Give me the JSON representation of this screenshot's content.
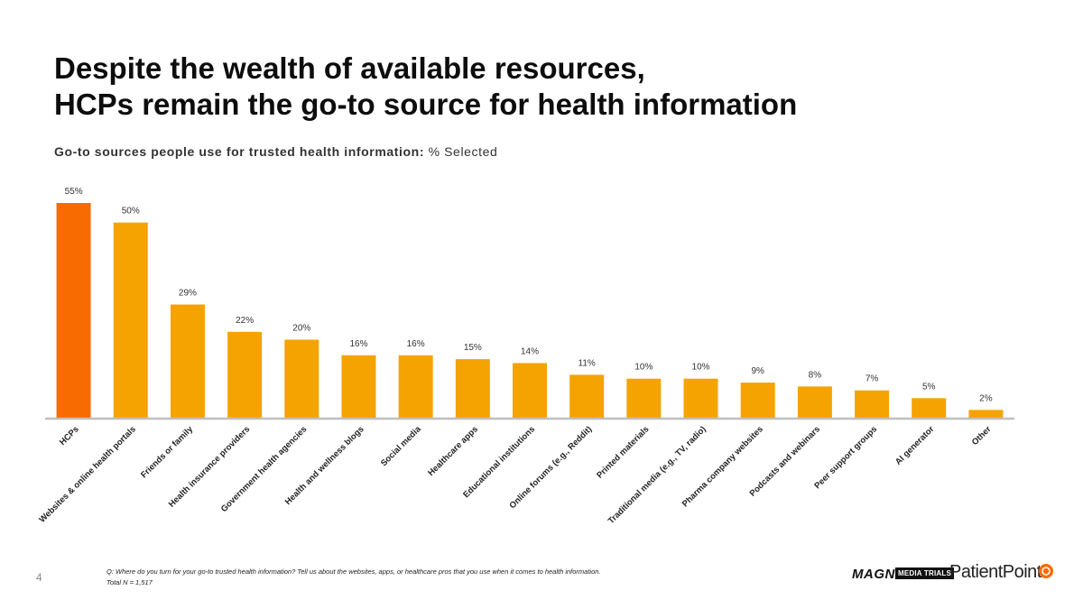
{
  "title_line1": "Despite the wealth of available resources,",
  "title_line2": "HCPs remain the go-to source for health information",
  "subtitle_bold": "Go-to sources people use for trusted health information:",
  "subtitle_rest": "% Selected",
  "page_number": "4",
  "footnote_line1": "Q: Where do you turn for your go-to trusted health information? Tell us about the websites, apps, or healthcare pros that you use when it comes to health information.",
  "footnote_line2": "Total N = 1,517",
  "logos": {
    "magna": "MAGNA",
    "media_trials": "MEDIA TRIALS",
    "patientpoint": "PatientPoint"
  },
  "colors": {
    "highlight": "#F76B00",
    "bar": "#F5A300",
    "axis": "#BFBFBF"
  },
  "chart_data": {
    "type": "bar",
    "title": "Go-to sources people use for trusted health information: % Selected",
    "xlabel": "",
    "ylabel": "",
    "ylim": [
      0,
      55
    ],
    "grid": false,
    "highlight_index": 0,
    "categories": [
      "HCPs",
      "Websites & online health portals",
      "Friends or family",
      "Health insurance providers",
      "Government health agencies",
      "Health and wellness blogs",
      "Social media",
      "Healthcare apps",
      "Educational institutions",
      "Online forums (e.g., Reddit)",
      "Printed materials",
      "Traditional media (e.g., TV, radio)",
      "Pharma company websites",
      "Podcasts and webinars",
      "Peer support groups",
      "AI generator",
      "Other"
    ],
    "values": [
      55,
      50,
      29,
      22,
      20,
      16,
      16,
      15,
      14,
      11,
      10,
      10,
      9,
      8,
      7,
      5,
      2
    ],
    "value_labels": [
      "55%",
      "50%",
      "29%",
      "22%",
      "20%",
      "16%",
      "16%",
      "15%",
      "14%",
      "11%",
      "10%",
      "10%",
      "9%",
      "8%",
      "7%",
      "5%",
      "2%"
    ]
  }
}
